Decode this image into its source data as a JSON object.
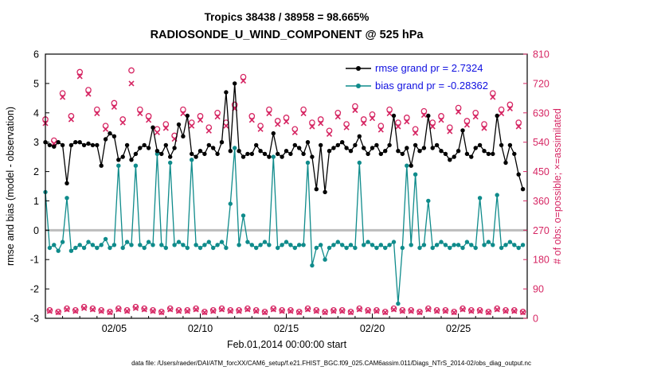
{
  "colors": {
    "rmse": "#000000",
    "bias": "#0f8b8b",
    "obs": "#d62663",
    "legend_text": "#1010e0",
    "zero_line": "#bdbdbd",
    "axis": "#000000"
  },
  "footer": {
    "data_file_note": "data file: /Users/raeder/DAI/ATM_forcXX/CAM6_setup/f.e21.FHIST_BGC.f09_025.CAM6assim.011/Diags_NTrS_2014-02/obs_diag_output.nc"
  },
  "chart_data": {
    "type": "line",
    "title": "Tropics 38438 / 38958 = 98.665%",
    "subtitle": "RADIOSONDE_U_WIND_COMPONENT @ 525 hPa",
    "xlabel": "Feb.01,2014 00:00:00 start",
    "ylabel_left": "rmse and bias (model - observation)",
    "ylabel_right": "# of obs: o=possible; ×=assimilated",
    "xlim": [
      1,
      29
    ],
    "ylim_left": [
      -3,
      6
    ],
    "ylim_right": [
      0,
      810
    ],
    "x_start_day": 1.0,
    "x_step_days": 0.25,
    "x_tick_days": [
      5,
      10,
      15,
      20,
      25
    ],
    "x_tick_labels": [
      "02/05",
      "02/10",
      "02/15",
      "02/20",
      "02/25"
    ],
    "left_ticks": [
      6,
      5,
      4,
      3,
      2,
      1,
      0,
      -1,
      -2,
      -3
    ],
    "right_ticks": [
      810,
      720,
      630,
      540,
      450,
      360,
      270,
      180,
      90,
      0
    ],
    "zero_line": 0,
    "grid": false,
    "legend_position": "top-right-inside",
    "legend": [
      {
        "label": "rmse grand pr = 2.7324",
        "series": "rmse"
      },
      {
        "label": "bias grand pr = -0.28362",
        "series": "bias"
      }
    ],
    "series": [
      {
        "name": "rmse",
        "axis": "left",
        "marker": "dot",
        "color": "#000000",
        "values": [
          3.0,
          2.9,
          2.85,
          3.0,
          2.9,
          1.6,
          2.9,
          3.0,
          3.0,
          2.9,
          2.95,
          2.9,
          2.9,
          2.2,
          3.1,
          3.3,
          3.2,
          2.4,
          2.5,
          2.9,
          2.4,
          2.6,
          2.8,
          2.9,
          2.8,
          3.5,
          2.7,
          2.6,
          2.9,
          2.5,
          2.8,
          3.6,
          3.2,
          3.9,
          2.6,
          2.5,
          2.7,
          2.6,
          2.9,
          2.8,
          2.6,
          3.0,
          4.7,
          2.7,
          5.0,
          2.7,
          2.5,
          2.6,
          2.6,
          2.9,
          2.7,
          2.6,
          2.5,
          3.3,
          2.6,
          2.5,
          2.7,
          2.6,
          2.9,
          2.8,
          2.6,
          3.0,
          2.5,
          1.4,
          2.9,
          1.3,
          2.7,
          2.8,
          2.9,
          3.0,
          2.8,
          2.7,
          2.9,
          3.2,
          2.8,
          2.6,
          2.8,
          2.9,
          2.6,
          2.7,
          2.9,
          3.9,
          2.7,
          2.6,
          2.8,
          2.2,
          2.9,
          2.7,
          2.8,
          3.9,
          2.8,
          2.9,
          2.7,
          2.6,
          2.4,
          2.5,
          2.7,
          3.4,
          2.6,
          2.5,
          2.8,
          2.9,
          2.7,
          2.6,
          2.6,
          3.9,
          2.9,
          2.3,
          2.9,
          2.6,
          1.9,
          1.4
        ]
      },
      {
        "name": "bias",
        "axis": "left",
        "marker": "dot",
        "color": "#0f8b8b",
        "values": [
          1.3,
          -0.6,
          -0.5,
          -0.7,
          -0.4,
          1.1,
          -0.7,
          -0.6,
          -0.5,
          -0.6,
          -0.4,
          -0.5,
          -0.6,
          -0.5,
          -0.3,
          -0.6,
          -0.5,
          2.2,
          -0.6,
          -0.4,
          -0.5,
          2.2,
          -0.5,
          -0.6,
          -0.4,
          -0.5,
          2.6,
          -0.5,
          -0.6,
          2.3,
          -0.5,
          -0.4,
          -0.5,
          -0.6,
          2.4,
          -0.5,
          -0.6,
          -0.5,
          -0.4,
          -0.6,
          -0.5,
          -0.4,
          -0.6,
          0.9,
          2.8,
          -0.5,
          0.5,
          -0.4,
          -0.5,
          -0.6,
          -0.5,
          -0.4,
          -0.5,
          2.5,
          -0.6,
          -0.5,
          -0.4,
          -0.5,
          -0.6,
          -0.5,
          -0.5,
          2.3,
          -1.2,
          -0.6,
          -0.5,
          -1.0,
          -0.6,
          -0.5,
          -0.4,
          -0.5,
          -0.6,
          -0.5,
          -0.6,
          2.3,
          -0.5,
          -0.4,
          -0.5,
          -0.6,
          -0.5,
          -0.6,
          -0.5,
          -0.4,
          -2.5,
          -0.6,
          2.2,
          -0.5,
          1.9,
          -0.6,
          -0.5,
          1.0,
          -0.6,
          -0.5,
          -0.4,
          -0.5,
          -0.6,
          -0.5,
          -0.5,
          -0.6,
          -0.4,
          -0.5,
          -0.6,
          1.1,
          -0.5,
          -0.4,
          -0.5,
          1.2,
          -0.6,
          -0.5,
          -0.4,
          -0.5,
          -0.6,
          -0.5
        ]
      },
      {
        "name": "obs_possible",
        "axis": "right",
        "marker": "circle",
        "color": "#d62663",
        "values": [
          610,
          25,
          545,
          20,
          690,
          30,
          620,
          25,
          755,
          35,
          700,
          30,
          640,
          25,
          590,
          20,
          660,
          30,
          610,
          25,
          760,
          35,
          640,
          30,
          620,
          25,
          580,
          20,
          595,
          30,
          560,
          25,
          640,
          25,
          600,
          30,
          620,
          20,
          585,
          25,
          630,
          30,
          600,
          25,
          655,
          25,
          740,
          30,
          620,
          25,
          590,
          20,
          640,
          30,
          605,
          25,
          615,
          25,
          580,
          20,
          640,
          30,
          600,
          25,
          610,
          20,
          575,
          25,
          630,
          25,
          595,
          20,
          650,
          30,
          610,
          25,
          625,
          25,
          590,
          20,
          640,
          30,
          600,
          25,
          615,
          25,
          580,
          20,
          635,
          30,
          600,
          25,
          620,
          25,
          585,
          20,
          645,
          30,
          605,
          25,
          630,
          25,
          595,
          20,
          690,
          30,
          640,
          25,
          655,
          25,
          600,
          20
        ]
      },
      {
        "name": "obs_assimilated",
        "axis": "right",
        "marker": "x",
        "color": "#d62663",
        "values": [
          598,
          22,
          536,
          18,
          678,
          27,
          610,
          22,
          742,
          31,
          688,
          27,
          628,
          22,
          580,
          18,
          648,
          27,
          600,
          22,
          720,
          31,
          628,
          27,
          608,
          22,
          570,
          18,
          583,
          27,
          550,
          22,
          628,
          22,
          590,
          27,
          608,
          18,
          575,
          22,
          618,
          27,
          590,
          22,
          643,
          22,
          728,
          27,
          608,
          22,
          580,
          18,
          628,
          27,
          595,
          22,
          603,
          22,
          570,
          18,
          628,
          27,
          588,
          22,
          598,
          18,
          565,
          22,
          618,
          22,
          585,
          18,
          638,
          27,
          598,
          22,
          613,
          22,
          578,
          18,
          628,
          27,
          588,
          22,
          603,
          22,
          568,
          18,
          623,
          27,
          588,
          22,
          608,
          22,
          573,
          18,
          633,
          27,
          593,
          22,
          618,
          22,
          583,
          18,
          678,
          27,
          628,
          22,
          643,
          22,
          588,
          18
        ]
      }
    ]
  }
}
